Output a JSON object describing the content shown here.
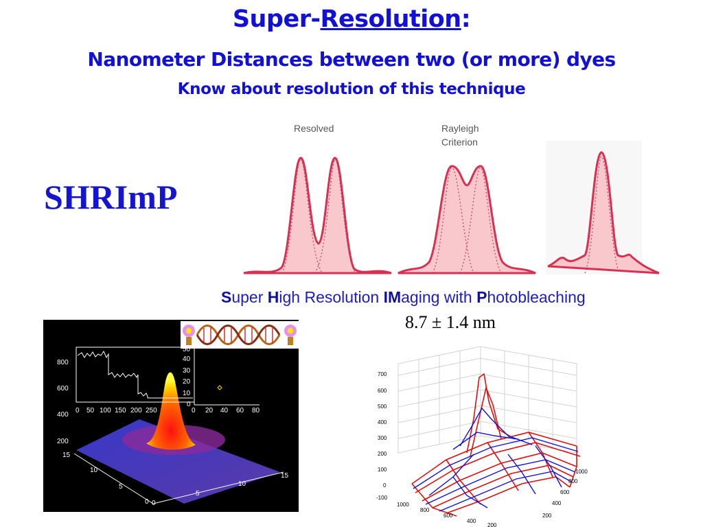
{
  "title": {
    "prefix": "Super-",
    "underlined": "Resolution",
    "suffix": ":"
  },
  "subtitle": "Nanometer Distances between two (or more) dyes",
  "subtitle2": "Know about resolution of this technique",
  "side_label": "SHRImP",
  "acronym": {
    "p1_bold": "S",
    "p1": "uper ",
    "p2_bold": "H",
    "p2": "igh Resolution ",
    "p3_bold": "IM",
    "p3": "aging with ",
    "p4_bold": "P",
    "p4": "hotobleaching"
  },
  "distance": "8.7 ± 1.4 nm",
  "resolution_figure": {
    "label_resolved": "Resolved",
    "label_rayleigh_1": "Rayleigh",
    "label_rayleigh_2": "Criterion",
    "colors": {
      "line": "#d83050",
      "fill": "#f8c8cc"
    }
  },
  "trace_inset": {
    "y_ticks": [
      "800",
      "600",
      "400",
      "200"
    ],
    "x_ticks": [
      "0",
      "50",
      "100",
      "150",
      "200",
      "250"
    ]
  },
  "scatter_inset": {
    "y_ticks": [
      "50",
      "40",
      "30",
      "20",
      "10",
      "0"
    ],
    "x_ticks": [
      "0",
      "20",
      "40",
      "60",
      "80"
    ]
  },
  "surface_axes": {
    "left_ticks": [
      "15",
      "10",
      "5",
      "0"
    ],
    "right_ticks": [
      "0",
      "5",
      "10",
      "15"
    ]
  },
  "wireframe": {
    "z_ticks": [
      "700",
      "600",
      "500",
      "400",
      "300",
      "200",
      "100",
      "0",
      "-100"
    ],
    "left_ticks": [
      "1000",
      "800",
      "600",
      "400",
      "200"
    ],
    "right_ticks": [
      "1000",
      "800",
      "600",
      "400",
      "200"
    ],
    "colors": {
      "a": "#e01010",
      "b": "#1010e0"
    }
  }
}
